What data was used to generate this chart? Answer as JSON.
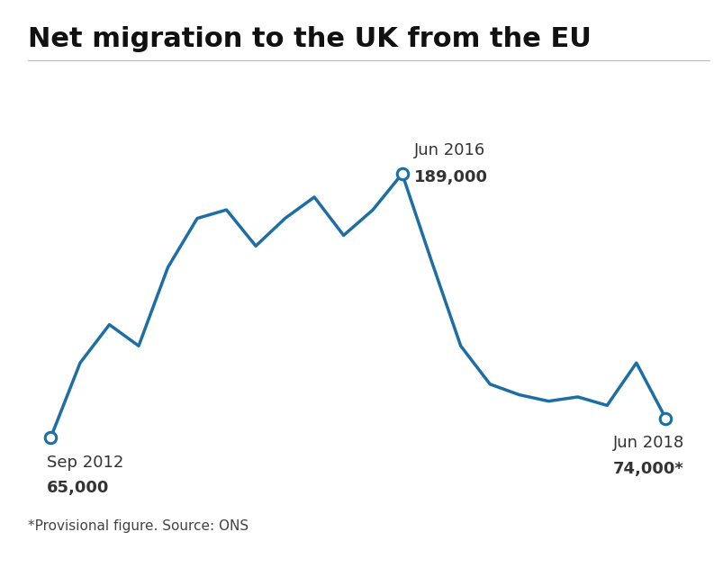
{
  "title": "Net migration to the UK from the EU",
  "line_color": "#1c6ea4",
  "background_color": "#ffffff",
  "footnote": "*Provisional figure. Source: ONS",
  "pa_logo_color": "#cc0000",
  "x_values": [
    0,
    1,
    2,
    3,
    4,
    5,
    6,
    7,
    8,
    9,
    10,
    11,
    12,
    13,
    14,
    15,
    16,
    17,
    18,
    19,
    20,
    21
  ],
  "y_values": [
    65,
    100,
    118,
    108,
    145,
    168,
    172,
    155,
    168,
    178,
    160,
    172,
    189,
    148,
    108,
    90,
    85,
    82,
    84,
    80,
    100,
    74
  ],
  "highlight_points": [
    {
      "x_idx": 0,
      "label_line1": "Sep 2012",
      "label_line2": "65,000",
      "position": "below-left"
    },
    {
      "x_idx": 12,
      "label_line1": "Jun 2016",
      "label_line2": "189,000",
      "position": "above"
    },
    {
      "x_idx": 21,
      "label_line1": "Jun 2018",
      "label_line2": "74,000*",
      "position": "below-right"
    }
  ],
  "ylim": [
    40,
    230
  ],
  "xlim": [
    -0.5,
    22.0
  ],
  "linewidth": 2.5,
  "marker_size": 9,
  "title_fontsize": 22,
  "label_fontsize": 13,
  "footnote_fontsize": 11
}
